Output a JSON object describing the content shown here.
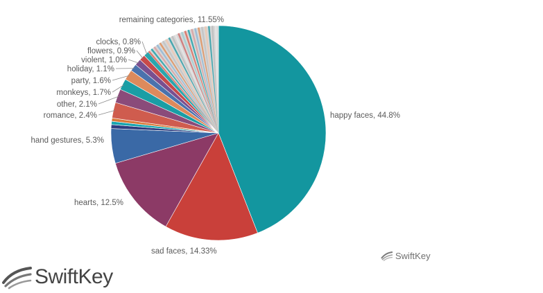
{
  "brand": {
    "name": "SwiftKey",
    "color": "#4a4a4a"
  },
  "chart_data": {
    "type": "pie",
    "title": "",
    "label_format": "{name}, {value}%",
    "slices": [
      {
        "name": "happy faces",
        "value": 44.8,
        "display": "44.8",
        "color": "#13969f"
      },
      {
        "name": "sad faces",
        "value": 14.33,
        "display": "14.33",
        "color": "#c9403a"
      },
      {
        "name": "hearts",
        "value": 12.5,
        "display": "12.5",
        "color": "#8c3a66"
      },
      {
        "name": "hand gestures",
        "value": 5.3,
        "display": "5.3",
        "color": "#3a69a6"
      },
      {
        "name": "",
        "value": 0.6,
        "display": "",
        "color": "#2e3e80"
      },
      {
        "name": "",
        "value": 0.5,
        "display": "",
        "color": "#17a5b0"
      },
      {
        "name": "",
        "value": 0.5,
        "display": "",
        "color": "#d97a3b"
      },
      {
        "name": "romance",
        "value": 2.4,
        "display": "2.4",
        "color": "#cf5c4e"
      },
      {
        "name": "other",
        "value": 2.1,
        "display": "2.1",
        "color": "#8a4b7a"
      },
      {
        "name": "monkeys",
        "value": 1.7,
        "display": "1.7",
        "color": "#1a9ea5"
      },
      {
        "name": "party",
        "value": 1.6,
        "display": "1.6",
        "color": "#dd8a5c"
      },
      {
        "name": "holiday",
        "value": 1.1,
        "display": "1.1",
        "color": "#4a72ad"
      },
      {
        "name": "violent",
        "value": 1.0,
        "display": "1.0",
        "color": "#7a4f8f"
      },
      {
        "name": "flowers",
        "value": 0.9,
        "display": "0.9",
        "color": "#c74a4a"
      },
      {
        "name": "clocks",
        "value": 0.8,
        "display": "0.8",
        "color": "#2aa6ad"
      },
      {
        "name": "remaining categories",
        "value": 11.55,
        "display": "11.55",
        "color": "#d7d7d7"
      }
    ]
  }
}
